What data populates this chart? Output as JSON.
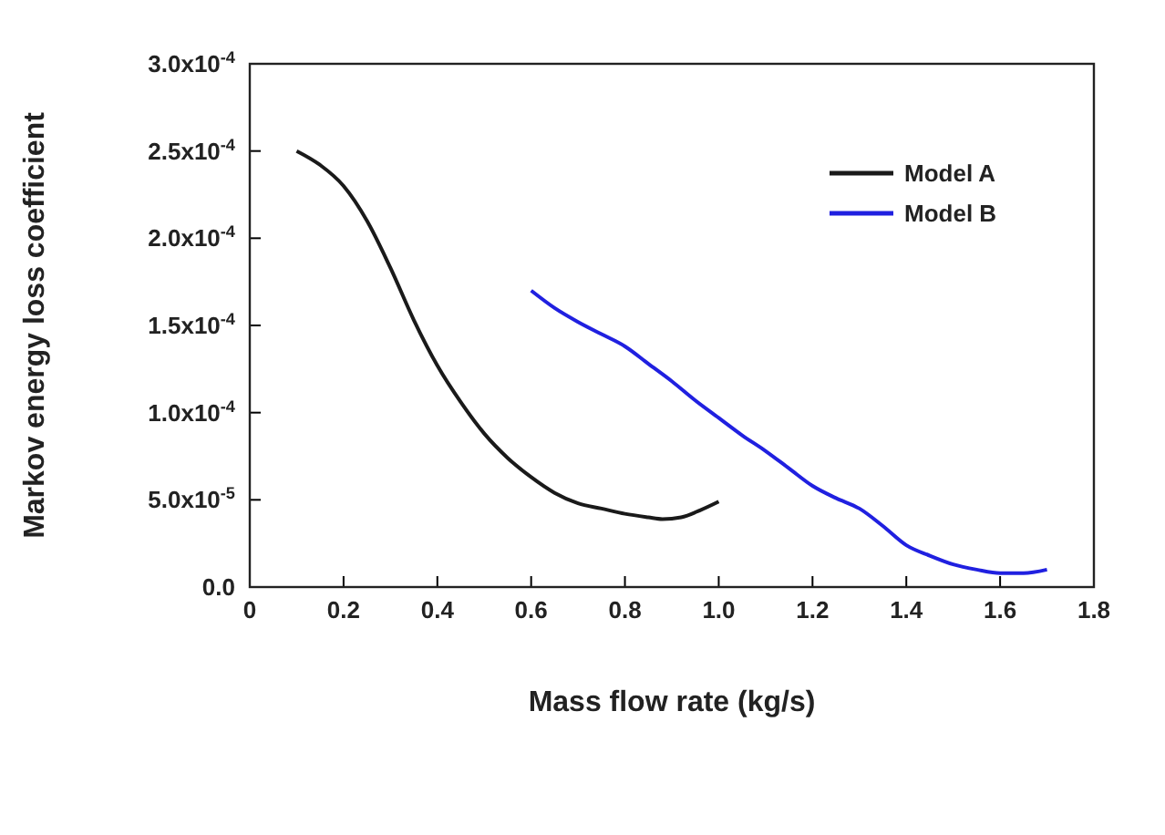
{
  "chart_data": {
    "type": "line",
    "xlabel": "Mass flow rate (kg/s)",
    "ylabel": "Markov energy loss coefficient",
    "xlim": [
      0,
      1.8
    ],
    "xticks": [
      0,
      {
        "value": 0.2,
        "label": "0.2"
      },
      {
        "value": 0.4,
        "label": "0.4"
      },
      {
        "value": 0.6,
        "label": "0.6"
      },
      {
        "value": 0.8,
        "label": "0.8"
      },
      {
        "value": 1,
        "label": "1.0"
      },
      {
        "value": 1.2,
        "label": "1.2"
      },
      {
        "value": 1.4,
        "label": "1.4"
      },
      {
        "value": 1.6,
        "label": "1.6"
      },
      {
        "value": 1.8,
        "label": "1.8"
      }
    ],
    "ylim": [
      0,
      0.0003
    ],
    "yticks": [
      {
        "value": 0,
        "label": "0.0"
      },
      {
        "value": 5e-05,
        "label": "5.0x10$^{-5}$"
      },
      {
        "value": 0.0001,
        "label": "1.0x10$^{-4}$"
      },
      {
        "value": 0.00015,
        "label": "1.5x10$^{-4}$"
      },
      {
        "value": 0.0002,
        "label": "2.0x10$^{-4}$"
      },
      {
        "value": 0.00025,
        "label": "2.5x10$^{-4}$"
      },
      {
        "value": 0.0003,
        "label": "3.0x10$^{-4}$"
      }
    ],
    "legend": "top right",
    "grid": false,
    "line_style": "solid",
    "marker": "none",
    "series": [
      {
        "name": "Model A",
        "color": "#1a1a1a",
        "x": [
          0.1,
          0.15,
          0.2,
          0.25,
          0.3,
          0.35,
          0.4,
          0.45,
          0.5,
          0.55,
          0.6,
          0.65,
          0.7,
          0.75,
          0.8,
          0.85,
          0.88,
          0.92,
          0.96,
          1.0
        ],
        "values": [
          0.00025,
          0.000242,
          0.00023,
          0.00021,
          0.000183,
          0.000153,
          0.000127,
          0.000106,
          8.8e-05,
          7.4e-05,
          6.3e-05,
          5.4e-05,
          4.8e-05,
          4.5e-05,
          4.2e-05,
          4e-05,
          3.9e-05,
          4e-05,
          4.4e-05,
          4.9e-05
        ]
      },
      {
        "name": "Model B",
        "color": "#2020e0",
        "x": [
          0.6,
          0.65,
          0.7,
          0.75,
          0.8,
          0.85,
          0.9,
          0.95,
          1.0,
          1.05,
          1.1,
          1.15,
          1.2,
          1.25,
          1.3,
          1.35,
          1.4,
          1.45,
          1.5,
          1.55,
          1.6,
          1.65,
          1.7
        ],
        "values": [
          0.00017,
          0.00016,
          0.000152,
          0.000145,
          0.000138,
          0.000128,
          0.000118,
          0.000107,
          9.7e-05,
          8.7e-05,
          7.8e-05,
          6.8e-05,
          5.8e-05,
          5.1e-05,
          4.5e-05,
          3.5e-05,
          2.4e-05,
          1.8e-05,
          1.3e-05,
          1e-05,
          8e-06,
          8e-06,
          1e-05
        ]
      }
    ]
  }
}
